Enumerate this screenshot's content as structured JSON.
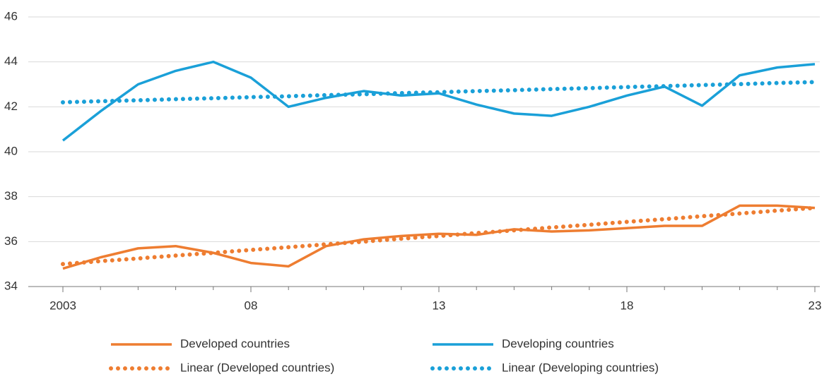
{
  "chart_data": {
    "type": "line",
    "categories": [
      "2003",
      null,
      null,
      null,
      null,
      "08",
      null,
      null,
      null,
      null,
      "13",
      null,
      null,
      null,
      null,
      "18",
      null,
      null,
      null,
      null,
      "23"
    ],
    "series": [
      {
        "name": "Developed countries",
        "color": "#ee7d31",
        "style": "solid",
        "values": [
          34.8,
          35.3,
          35.7,
          35.8,
          35.5,
          35.05,
          34.9,
          35.8,
          36.1,
          36.25,
          36.35,
          36.3,
          36.55,
          36.45,
          36.5,
          36.6,
          36.7,
          36.7,
          37.6,
          37.6,
          37.5
        ]
      },
      {
        "name": "Developing countries",
        "color": "#1aa0d8",
        "style": "solid",
        "values": [
          40.5,
          41.8,
          43.0,
          43.6,
          44.0,
          43.3,
          42.0,
          42.4,
          42.7,
          42.5,
          42.6,
          42.1,
          41.7,
          41.6,
          42.0,
          42.5,
          42.9,
          42.05,
          43.4,
          43.75,
          43.9
        ]
      },
      {
        "name": "Linear (Developed countries)",
        "color": "#ee7d31",
        "style": "dotted",
        "values": [
          35,
          35.13,
          35.25,
          35.38,
          35.5,
          35.63,
          35.75,
          35.88,
          36,
          36.13,
          36.25,
          36.38,
          36.5,
          36.63,
          36.75,
          36.88,
          37,
          37.13,
          37.25,
          37.38,
          37.5
        ]
      },
      {
        "name": "Linear (Developing countries)",
        "color": "#1aa0d8",
        "style": "dotted",
        "values": [
          42.2,
          42.25,
          42.29,
          42.34,
          42.38,
          42.43,
          42.47,
          42.52,
          42.56,
          42.61,
          42.65,
          42.7,
          42.74,
          42.79,
          42.83,
          42.88,
          42.92,
          42.97,
          43.01,
          43.06,
          43.1
        ]
      }
    ],
    "ylim": [
      34,
      46
    ],
    "yticks": [
      34,
      36,
      38,
      40,
      42,
      44,
      46
    ],
    "grid": true
  }
}
